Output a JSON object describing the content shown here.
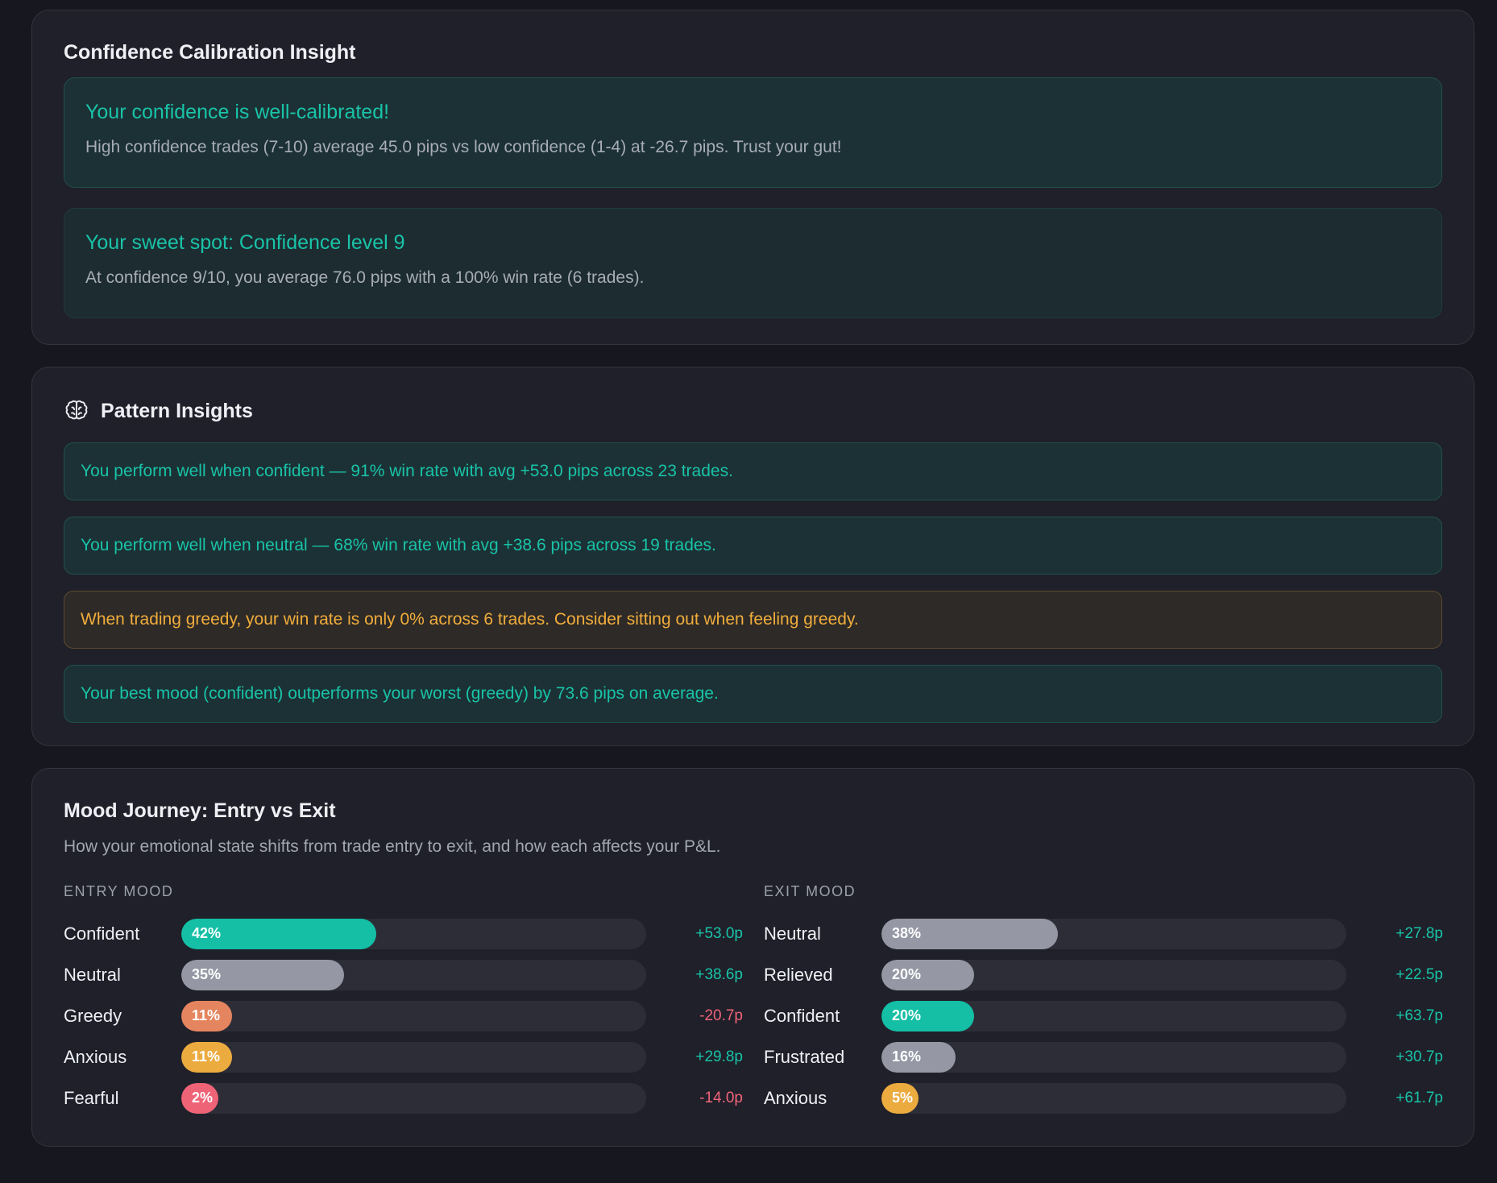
{
  "calibration": {
    "title": "Confidence Calibration Insight",
    "primary": {
      "heading": "Your confidence is well-calibrated!",
      "text": "High confidence trades (7-10) average 45.0 pips vs low confidence (1-4) at -26.7 pips. Trust your gut!"
    },
    "secondary": {
      "heading": "Your sweet spot: Confidence level 9",
      "text": "At confidence 9/10, you average 76.0 pips with a 100% win rate (6 trades)."
    }
  },
  "patterns": {
    "title": "Pattern Insights",
    "icon": "brain-icon",
    "items": [
      {
        "kind": "good",
        "text": "You perform well when confident — 91% win rate with avg +53.0 pips across 23 trades."
      },
      {
        "kind": "good",
        "text": "You perform well when neutral — 68% win rate with avg +38.6 pips across 19 trades."
      },
      {
        "kind": "warn",
        "text": "When trading greedy, your win rate is only 0% across 6 trades. Consider sitting out when feeling greedy."
      },
      {
        "kind": "good",
        "text": "Your best mood (confident) outperforms your worst (greedy) by 73.6 pips on average."
      }
    ]
  },
  "mood": {
    "title": "Mood Journey: Entry vs Exit",
    "subtitle": "How your emotional state shifts from trade entry to exit, and how each affects your P&L.",
    "colors": {
      "confident": "#14bfa6",
      "neutral": "#9598a4",
      "greedy": "#e5855f",
      "anxious": "#ecab3f",
      "fearful": "#ef6377",
      "relieved": "#9598a4",
      "frustrated": "#9598a4"
    },
    "entry": {
      "title": "ENTRY MOOD",
      "rows": [
        {
          "label": "Confident",
          "key": "confident",
          "pct": 42,
          "pct_label": "42%",
          "pips": "+53.0p",
          "positive": true
        },
        {
          "label": "Neutral",
          "key": "neutral",
          "pct": 35,
          "pct_label": "35%",
          "pips": "+38.6p",
          "positive": true
        },
        {
          "label": "Greedy",
          "key": "greedy",
          "pct": 11,
          "pct_label": "11%",
          "pips": "-20.7p",
          "positive": false
        },
        {
          "label": "Anxious",
          "key": "anxious",
          "pct": 11,
          "pct_label": "11%",
          "pips": "+29.8p",
          "positive": true
        },
        {
          "label": "Fearful",
          "key": "fearful",
          "pct": 2,
          "pct_label": "2%",
          "pips": "-14.0p",
          "positive": false
        }
      ]
    },
    "exit": {
      "title": "EXIT MOOD",
      "rows": [
        {
          "label": "Neutral",
          "key": "neutral",
          "pct": 38,
          "pct_label": "38%",
          "pips": "+27.8p",
          "positive": true
        },
        {
          "label": "Relieved",
          "key": "relieved",
          "pct": 20,
          "pct_label": "20%",
          "pips": "+22.5p",
          "positive": true
        },
        {
          "label": "Confident",
          "key": "confident",
          "pct": 20,
          "pct_label": "20%",
          "pips": "+63.7p",
          "positive": true
        },
        {
          "label": "Frustrated",
          "key": "frustrated",
          "pct": 16,
          "pct_label": "16%",
          "pips": "+30.7p",
          "positive": true
        },
        {
          "label": "Anxious",
          "key": "anxious",
          "pct": 5,
          "pct_label": "5%",
          "pips": "+61.7p",
          "positive": true
        }
      ]
    }
  }
}
